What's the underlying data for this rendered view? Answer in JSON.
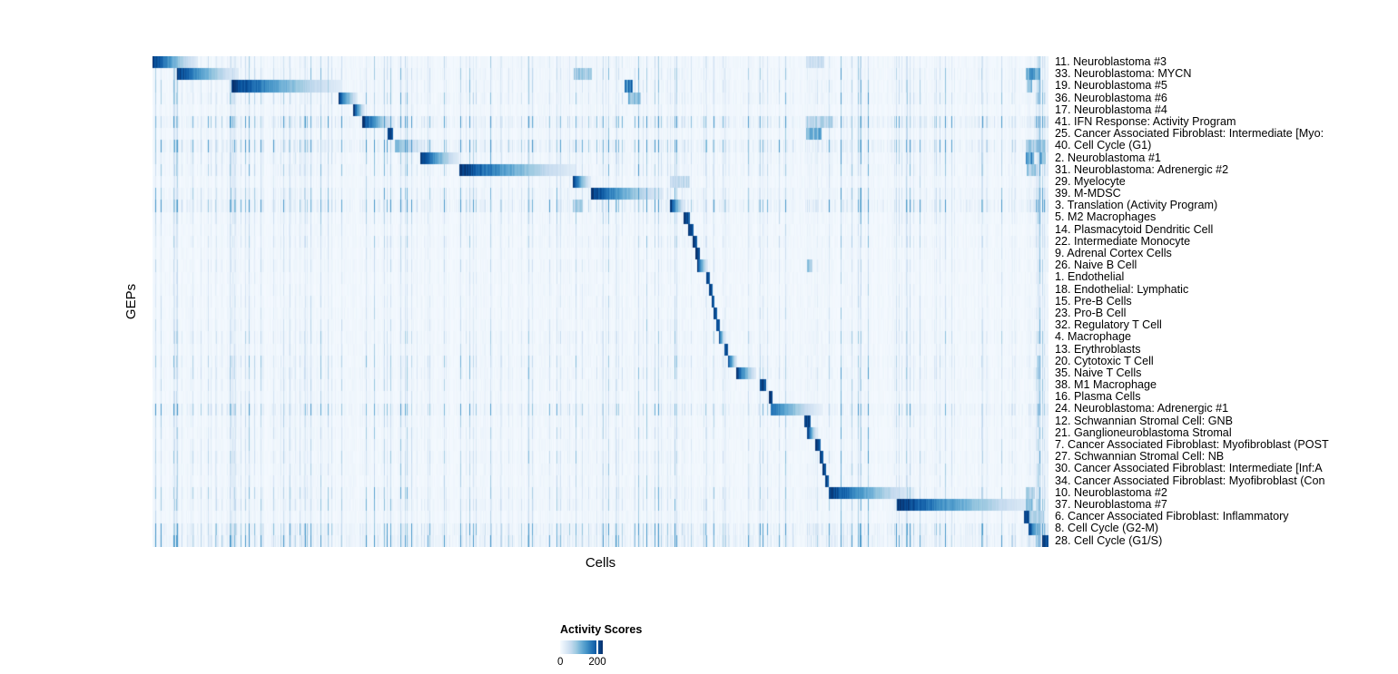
{
  "figure": {
    "xlabel": "Cells",
    "ylabel": "GEPs",
    "legend": {
      "title": "Activity Scores",
      "min_label": "0",
      "max_label": "200"
    }
  },
  "chart_data": {
    "type": "heatmap",
    "title": "",
    "xlabel": "Cells",
    "ylabel": "GEPs",
    "legend": {
      "title": "Activity Scores",
      "ticks": [
        0,
        200
      ],
      "position": "bottom-left"
    },
    "colormap": {
      "name": "Blues",
      "low": "#F7FBFF",
      "high": "#08306B",
      "stops": [
        "#F7FBFF",
        "#DEEBF7",
        "#C6DBEF",
        "#9ECAE1",
        "#6BAED6",
        "#4292C6",
        "#2171B5",
        "#08519C",
        "#08306B"
      ]
    },
    "value_range": [
      0,
      230
    ],
    "n_rows": 41,
    "n_cols": 987,
    "description": "Diagonal block-structured heatmap of GEP activity scores per cell; each row has a dominant dark-blue block of active cells (start/end given as fraction of x-axis), fading left-to-right, over pale striped background noise.",
    "rows": [
      {
        "label": "11. Neuroblastoma #3",
        "block": {
          "start": 0.0,
          "end": 0.05,
          "peak": 1.0,
          "fade": true
        },
        "stripe_gain": 0.55,
        "extras": [
          [
            0.73,
            0.75,
            0.22
          ]
        ]
      },
      {
        "label": "33. Neuroblastoma: MYCN",
        "block": {
          "start": 0.027,
          "end": 0.096,
          "peak": 1.0,
          "fade": true
        },
        "stripe_gain": 0.7,
        "extras": [
          [
            0.47,
            0.49,
            0.35
          ],
          [
            0.975,
            0.99,
            0.55
          ]
        ]
      },
      {
        "label": "19. Neuroblastoma #5",
        "block": {
          "start": 0.088,
          "end": 0.21,
          "peak": 1.0,
          "fade": true
        },
        "stripe_gain": 0.7,
        "extras": [
          [
            0.527,
            0.536,
            0.75
          ],
          [
            0.976,
            0.982,
            0.4
          ]
        ]
      },
      {
        "label": "36. Neuroblastoma #6",
        "block": {
          "start": 0.207,
          "end": 0.229,
          "peak": 1.0,
          "fade": true
        },
        "stripe_gain": 0.8,
        "extras": [
          [
            0.531,
            0.545,
            0.45
          ]
        ]
      },
      {
        "label": "17. Neuroblastoma #4",
        "block": {
          "start": 0.224,
          "end": 0.237,
          "peak": 1.0,
          "fade": true
        },
        "stripe_gain": 0.45,
        "extras": []
      },
      {
        "label": "41. IFN Response: Activity Program",
        "block": {
          "start": 0.234,
          "end": 0.27,
          "peak": 1.0,
          "fade": true
        },
        "stripe_gain": 1.5,
        "extras": [
          [
            0.73,
            0.76,
            0.3
          ]
        ]
      },
      {
        "label": "25. Cancer Associated Fibroblast: Intermediate [Myo:",
        "block": {
          "start": 0.262,
          "end": 0.268,
          "peak": 1.0,
          "fade": false
        },
        "stripe_gain": 0.6,
        "extras": [
          [
            0.73,
            0.747,
            0.5
          ]
        ]
      },
      {
        "label": "40. Cell Cycle (G1)",
        "block": {
          "start": 0.27,
          "end": 0.307,
          "peak": 0.5,
          "fade": true
        },
        "stripe_gain": 1.5,
        "extras": [
          [
            0.975,
            0.995,
            0.35
          ]
        ]
      },
      {
        "label": "2. Neuroblastoma #1",
        "block": {
          "start": 0.299,
          "end": 0.342,
          "peak": 1.0,
          "fade": true
        },
        "stripe_gain": 0.8,
        "extras": [
          [
            0.975,
            0.984,
            0.6
          ],
          [
            0.99,
            0.997,
            0.5
          ]
        ]
      },
      {
        "label": "31. Neuroblastoma: Adrenergic #2",
        "block": {
          "start": 0.342,
          "end": 0.472,
          "peak": 1.0,
          "fade": true
        },
        "stripe_gain": 0.8,
        "extras": [
          [
            0.976,
            0.988,
            0.35
          ]
        ]
      },
      {
        "label": "29. Myelocyte",
        "block": {
          "start": 0.469,
          "end": 0.489,
          "peak": 1.0,
          "fade": true
        },
        "stripe_gain": 0.5,
        "extras": [
          [
            0.578,
            0.6,
            0.25
          ]
        ]
      },
      {
        "label": "39. M-MDSC",
        "block": {
          "start": 0.489,
          "end": 0.57,
          "peak": 1.0,
          "fade": true
        },
        "stripe_gain": 0.9,
        "extras": []
      },
      {
        "label": "3. Translation (Activity Program)",
        "block": {
          "start": 0.578,
          "end": 0.594,
          "peak": 1.0,
          "fade": true
        },
        "stripe_gain": 1.4,
        "extras": [
          [
            0.469,
            0.48,
            0.35
          ]
        ]
      },
      {
        "label": "5. M2 Macrophages",
        "block": {
          "start": 0.593,
          "end": 0.6,
          "peak": 1.0,
          "fade": false
        },
        "stripe_gain": 0.6,
        "extras": []
      },
      {
        "label": "14. Plasmacytoid Dendritic Cell",
        "block": {
          "start": 0.598,
          "end": 0.604,
          "peak": 1.0,
          "fade": false
        },
        "stripe_gain": 0.45,
        "extras": []
      },
      {
        "label": "22. Intermediate Monocyte",
        "block": {
          "start": 0.603,
          "end": 0.608,
          "peak": 1.0,
          "fade": false
        },
        "stripe_gain": 0.6,
        "extras": []
      },
      {
        "label": "9. Adrenal Cortex Cells",
        "block": {
          "start": 0.606,
          "end": 0.611,
          "peak": 1.0,
          "fade": false
        },
        "stripe_gain": 0.4,
        "extras": []
      },
      {
        "label": "26. Naive B Cell",
        "block": {
          "start": 0.608,
          "end": 0.62,
          "peak": 1.0,
          "fade": true
        },
        "stripe_gain": 0.5,
        "extras": [
          [
            0.731,
            0.737,
            0.35
          ]
        ]
      },
      {
        "label": "1. Endothelial",
        "block": {
          "start": 0.618,
          "end": 0.622,
          "peak": 1.0,
          "fade": false
        },
        "stripe_gain": 0.4,
        "extras": []
      },
      {
        "label": "18. Endothelial: Lymphatic",
        "block": {
          "start": 0.621,
          "end": 0.625,
          "peak": 1.0,
          "fade": false
        },
        "stripe_gain": 0.4,
        "extras": []
      },
      {
        "label": "15. Pre-B Cells",
        "block": {
          "start": 0.624,
          "end": 0.627,
          "peak": 1.0,
          "fade": false
        },
        "stripe_gain": 0.45,
        "extras": []
      },
      {
        "label": "23. Pro-B Cell",
        "block": {
          "start": 0.626,
          "end": 0.63,
          "peak": 1.0,
          "fade": false
        },
        "stripe_gain": 0.45,
        "extras": []
      },
      {
        "label": "32. Regulatory T Cell",
        "block": {
          "start": 0.629,
          "end": 0.633,
          "peak": 1.0,
          "fade": false
        },
        "stripe_gain": 0.5,
        "extras": []
      },
      {
        "label": "4. Macrophage",
        "block": {
          "start": 0.632,
          "end": 0.639,
          "peak": 1.0,
          "fade": true
        },
        "stripe_gain": 0.7,
        "extras": []
      },
      {
        "label": "13. Erythroblasts",
        "block": {
          "start": 0.638,
          "end": 0.643,
          "peak": 1.0,
          "fade": false
        },
        "stripe_gain": 0.5,
        "extras": []
      },
      {
        "label": "20. Cytotoxic T Cell",
        "block": {
          "start": 0.642,
          "end": 0.653,
          "peak": 1.0,
          "fade": true
        },
        "stripe_gain": 0.75,
        "extras": []
      },
      {
        "label": "35. Naive T Cells",
        "block": {
          "start": 0.652,
          "end": 0.674,
          "peak": 1.0,
          "fade": true
        },
        "stripe_gain": 0.75,
        "extras": []
      },
      {
        "label": "38. M1 Macrophage",
        "block": {
          "start": 0.678,
          "end": 0.685,
          "peak": 1.0,
          "fade": false
        },
        "stripe_gain": 0.6,
        "extras": []
      },
      {
        "label": "16. Plasma Cells",
        "block": {
          "start": 0.688,
          "end": 0.692,
          "peak": 1.0,
          "fade": false
        },
        "stripe_gain": 0.5,
        "extras": []
      },
      {
        "label": "24. Neuroblastoma: Adrenergic #1",
        "block": {
          "start": 0.69,
          "end": 0.748,
          "peak": 0.8,
          "fade": true
        },
        "stripe_gain": 1.1,
        "extras": []
      },
      {
        "label": "12. Schwannian Stromal Cell: GNB",
        "block": {
          "start": 0.728,
          "end": 0.735,
          "peak": 1.0,
          "fade": false
        },
        "stripe_gain": 0.6,
        "extras": []
      },
      {
        "label": "21. Ganglioneuroblastoma Stromal",
        "block": {
          "start": 0.731,
          "end": 0.742,
          "peak": 1.0,
          "fade": true
        },
        "stripe_gain": 0.6,
        "extras": []
      },
      {
        "label": "7. Cancer Associated Fibroblast: Myofibroblast (POST",
        "block": {
          "start": 0.74,
          "end": 0.746,
          "peak": 1.0,
          "fade": false
        },
        "stripe_gain": 0.55,
        "extras": []
      },
      {
        "label": "27. Schwannian Stromal Cell: NB",
        "block": {
          "start": 0.745,
          "end": 0.749,
          "peak": 1.0,
          "fade": false
        },
        "stripe_gain": 0.7,
        "extras": []
      },
      {
        "label": "30. Cancer Associated Fibroblast: Intermediate [Inf:A",
        "block": {
          "start": 0.748,
          "end": 0.752,
          "peak": 1.0,
          "fade": false
        },
        "stripe_gain": 0.6,
        "extras": []
      },
      {
        "label": "34. Cancer Associated Fibroblast: Myofibroblast (Con",
        "block": {
          "start": 0.751,
          "end": 0.755,
          "peak": 1.0,
          "fade": false
        },
        "stripe_gain": 0.55,
        "extras": []
      },
      {
        "label": "10. Neuroblastoma #2",
        "block": {
          "start": 0.755,
          "end": 0.85,
          "peak": 1.0,
          "fade": true
        },
        "stripe_gain": 0.8,
        "extras": [
          [
            0.975,
            0.985,
            0.3
          ]
        ]
      },
      {
        "label": "37. Neuroblastoma #7",
        "block": {
          "start": 0.831,
          "end": 0.985,
          "peak": 1.0,
          "fade": true
        },
        "stripe_gain": 0.8,
        "extras": [
          [
            0.975,
            0.983,
            0.4
          ]
        ]
      },
      {
        "label": "6. Cancer Associated Fibroblast: Inflammatory",
        "block": {
          "start": 0.973,
          "end": 0.979,
          "peak": 1.0,
          "fade": false
        },
        "stripe_gain": 0.5,
        "extras": [
          [
            0.979,
            0.995,
            0.3
          ]
        ]
      },
      {
        "label": "8. Cell Cycle (G2-M)",
        "block": {
          "start": 0.978,
          "end": 0.996,
          "peak": 1.0,
          "fade": true
        },
        "stripe_gain": 1.5,
        "extras": []
      },
      {
        "label": "28. Cell Cycle (G1/S)",
        "block": {
          "start": 0.993,
          "end": 1.0,
          "peak": 1.0,
          "fade": false
        },
        "stripe_gain": 1.6,
        "extras": []
      }
    ]
  }
}
